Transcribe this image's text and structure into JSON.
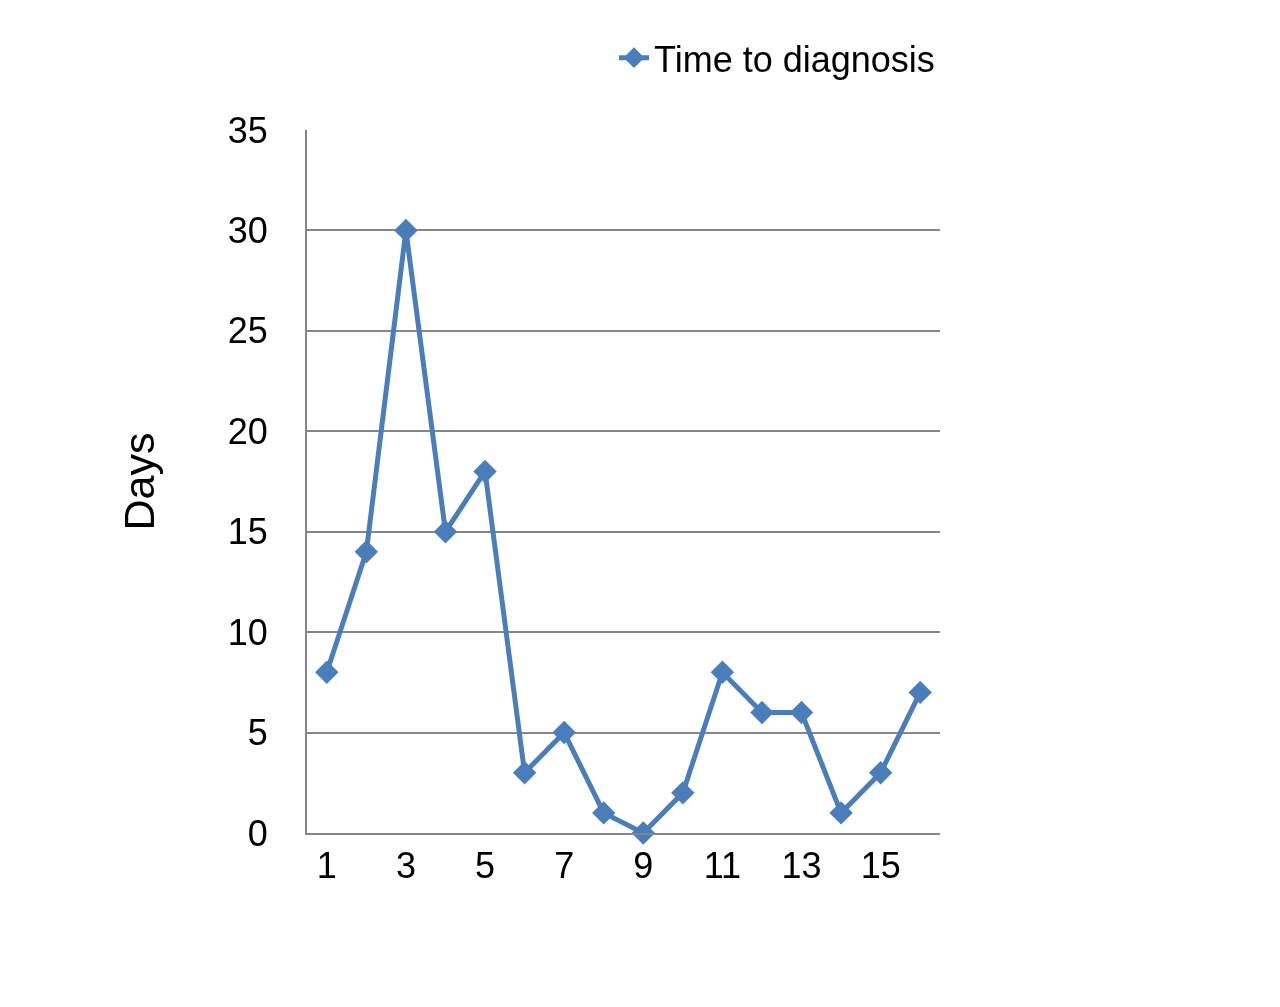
{
  "chart_data": {
    "type": "line",
    "ylabel": "Days",
    "x": [
      1,
      2,
      3,
      4,
      5,
      6,
      7,
      8,
      9,
      10,
      11,
      12,
      13,
      14,
      15,
      16
    ],
    "xlim": [
      0.5,
      16.5
    ],
    "xticks": [
      1,
      3,
      5,
      7,
      9,
      11,
      13,
      15
    ],
    "series": [
      {
        "name": "Time to diagnosis",
        "color": "#4a7ebb",
        "values": [
          8,
          14,
          30,
          15,
          18,
          3,
          5,
          1,
          0,
          2,
          8,
          6,
          6,
          1,
          3,
          7
        ]
      }
    ],
    "ylim": [
      0,
      35
    ],
    "yticks": [
      0,
      5,
      10,
      15,
      20,
      25,
      30,
      35
    ],
    "grid": "y",
    "legend": "top right",
    "marker": "diamond",
    "line_style": "solid"
  }
}
